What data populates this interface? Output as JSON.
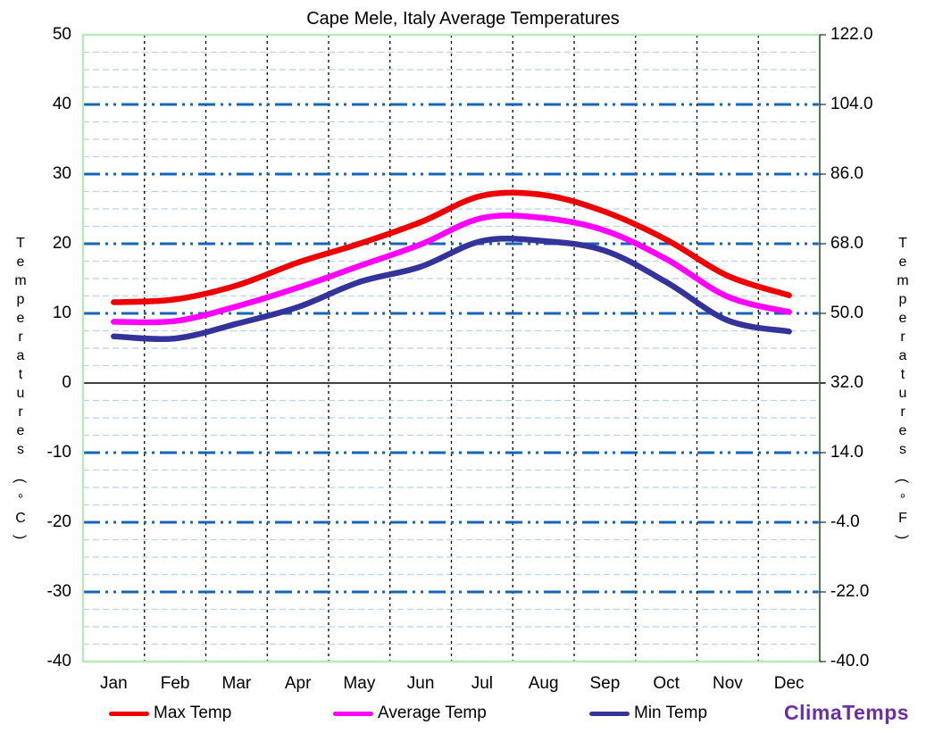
{
  "title": "Cape Mele, Italy Average Temperatures",
  "logo": {
    "text": "ClimaTemps",
    "color": "#6B2FA5"
  },
  "axes": {
    "left_title": "Temperatures (°C)",
    "right_title": "Temperatures (°F)",
    "left_tick_labels": [
      "50",
      "40",
      "30",
      "20",
      "10",
      "0",
      "-10",
      "-20",
      "-30",
      "-40"
    ],
    "right_tick_labels": [
      "122.0",
      "104.0",
      "86.0",
      "68.0",
      "50.0",
      "32.0",
      "14.0",
      "-4.0",
      "-22.0",
      "-40.0"
    ]
  },
  "legend": [
    {
      "label": "Max Temp",
      "color": "#EE0000"
    },
    {
      "label": "Average Temp",
      "color": "#FF00FF"
    },
    {
      "label": "Min Temp",
      "color": "#333399"
    }
  ],
  "chart_data": {
    "type": "line",
    "title": "Cape Mele, Italy Average Temperatures",
    "categories": [
      "Jan",
      "Feb",
      "Mar",
      "Apr",
      "May",
      "Jun",
      "Jul",
      "Aug",
      "Sep",
      "Oct",
      "Nov",
      "Dec"
    ],
    "series": [
      {
        "name": "Max Temp",
        "color": "#EE0000",
        "values": [
          11.6,
          12.0,
          14.0,
          17.3,
          20.0,
          23.1,
          26.9,
          27.0,
          24.6,
          20.6,
          15.4,
          12.6
        ]
      },
      {
        "name": "Average Temp",
        "color": "#FF00FF",
        "values": [
          8.8,
          8.9,
          11.0,
          13.7,
          16.8,
          19.9,
          23.7,
          23.7,
          21.9,
          17.8,
          12.4,
          10.2
        ]
      },
      {
        "name": "Min Temp",
        "color": "#333399",
        "values": [
          6.7,
          6.4,
          8.5,
          10.9,
          14.5,
          16.7,
          20.4,
          20.4,
          19.0,
          14.5,
          9.0,
          7.4
        ]
      }
    ],
    "ylabel_left": "Temperatures (°C)",
    "ylabel_right": "Temperatures (°F)",
    "xlabel": "",
    "ylim": [
      -40,
      50
    ],
    "y_major_step": 10,
    "y_minor_step": 2.5,
    "grid": true,
    "legend_position": "bottom",
    "style": {
      "major_gridline_color": "#1464B8",
      "minor_gridline_color": "#B8D4EE",
      "month_gridline_color": "#000000",
      "zero_line_color": "#000000",
      "plot_border_color": "#B7EBB7"
    }
  }
}
